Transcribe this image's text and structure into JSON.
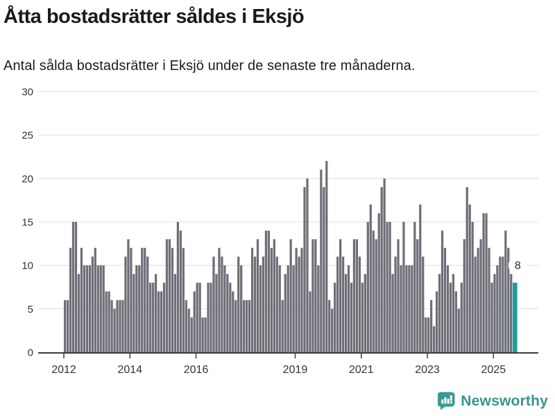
{
  "header": {
    "title": "Åtta bostadsrätter såldes i Eksjö",
    "subtitle": "Antal sålda bostadsrätter i Eksjö under de senaste tre månaderna."
  },
  "footer": {
    "brand_name": "Newsworthy",
    "logo_icon": "bar-chart-speech-bubble-icon"
  },
  "chart_data": {
    "type": "bar",
    "title": "Åtta bostadsrätter såldes i Eksjö",
    "subtitle": "Antal sålda bostadsrätter i Eksjö under de senaste tre månaderna.",
    "xlabel": "",
    "ylabel": "",
    "ylim": [
      0,
      30
    ],
    "yticks": [
      0,
      5,
      10,
      15,
      20,
      25,
      30
    ],
    "grid": true,
    "x_start_month": "2012-01",
    "x_tick_years": [
      2012,
      2014,
      2016,
      2019,
      2021,
      2023,
      2025
    ],
    "values": [
      6,
      6,
      12,
      15,
      15,
      9,
      12,
      10,
      10,
      10,
      11,
      12,
      10,
      10,
      10,
      7,
      7,
      6,
      5,
      6,
      6,
      6,
      11,
      13,
      12,
      9,
      10,
      10,
      12,
      12,
      11,
      8,
      8,
      9,
      7,
      7,
      8,
      13,
      13,
      12,
      9,
      15,
      14,
      12,
      6,
      5,
      4,
      7,
      8,
      8,
      4,
      4,
      8,
      8,
      11,
      9,
      12,
      11,
      10,
      9,
      8,
      7,
      6,
      11,
      10,
      6,
      6,
      6,
      12,
      11,
      13,
      10,
      11,
      14,
      14,
      12,
      13,
      11,
      10,
      6,
      9,
      10,
      13,
      10,
      12,
      11,
      12,
      19,
      20,
      7,
      13,
      13,
      10,
      21,
      19,
      22,
      6,
      5,
      8,
      11,
      13,
      11,
      9,
      10,
      8,
      13,
      13,
      11,
      8,
      9,
      15,
      17,
      14,
      13,
      16,
      19,
      20,
      15,
      15,
      9,
      11,
      13,
      10,
      15,
      10,
      10,
      10,
      15,
      13,
      17,
      11,
      4,
      4,
      6,
      3,
      7,
      9,
      14,
      12,
      10,
      8,
      9,
      7,
      5,
      8,
      13,
      19,
      17,
      15,
      11,
      12,
      13,
      16,
      16,
      12,
      8,
      9,
      10,
      11,
      11,
      14,
      12,
      9,
      8
    ],
    "highlight_last_bar": true,
    "highlight_value_label": "8",
    "colors": {
      "bar": "#6e6e77",
      "highlight": "#18a09a",
      "grid": "#e6e6e6",
      "axis": "#3c3c3c",
      "tick_text": "#333333",
      "title_text": "#1a1a1a",
      "brand": "#39948e",
      "badge_bg": "#ffffff"
    },
    "legend": null
  }
}
